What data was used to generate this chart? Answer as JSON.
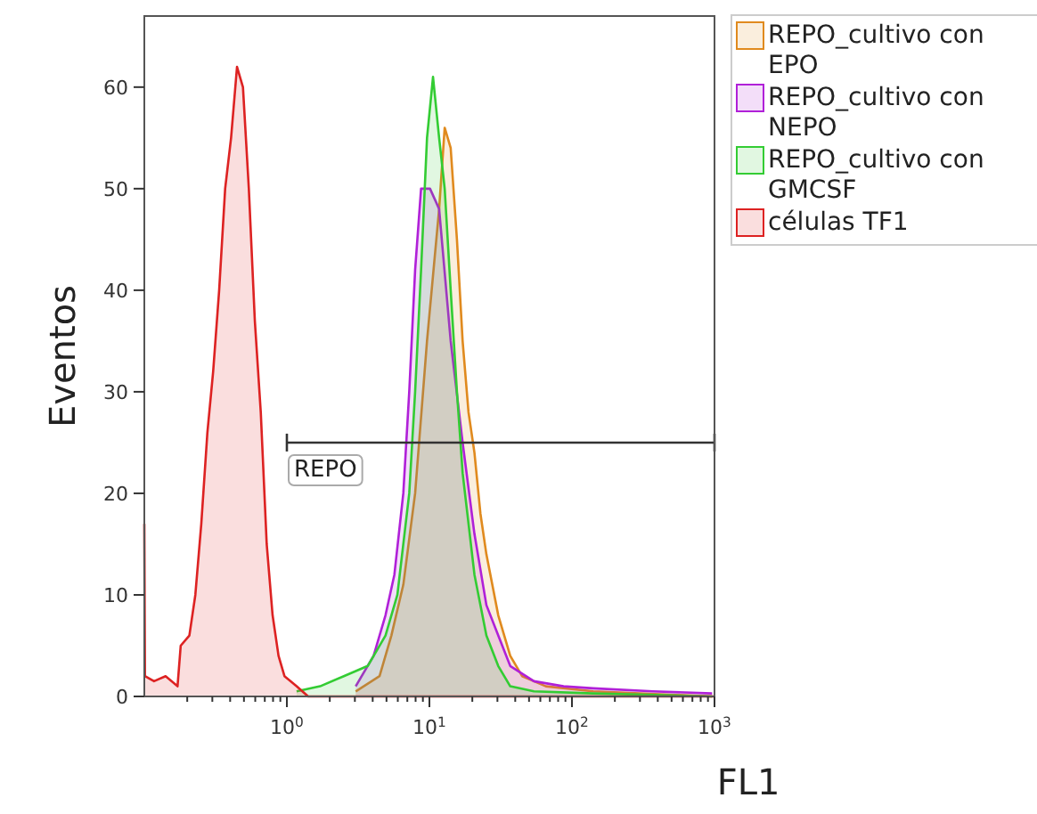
{
  "chart_data": {
    "type": "area",
    "xlabel": "FL1",
    "ylabel": "Eventos",
    "log": "x",
    "legend": "top right",
    "xlim": [
      0.1,
      1000
    ],
    "ylim": [
      0,
      67
    ],
    "xticks": [
      {
        "value": 0.2,
        "label": null
      },
      {
        "value": 0.3,
        "label": null
      },
      {
        "value": 0.4,
        "label": null
      },
      {
        "value": 0.5,
        "label": null
      },
      {
        "value": 0.6,
        "label": null
      },
      {
        "value": 0.7,
        "label": null
      },
      {
        "value": 0.8,
        "label": null
      },
      {
        "value": 0.9,
        "label": null
      },
      {
        "value": 1,
        "label": "10$^{0}$"
      },
      {
        "value": 2,
        "label": null
      },
      {
        "value": 3,
        "label": null
      },
      {
        "value": 4,
        "label": null
      },
      {
        "value": 5,
        "label": null
      },
      {
        "value": 6,
        "label": null
      },
      {
        "value": 7,
        "label": null
      },
      {
        "value": 8,
        "label": null
      },
      {
        "value": 9,
        "label": null
      },
      {
        "value": 10,
        "label": "10$^{1}$"
      },
      {
        "value": 20,
        "label": null
      },
      {
        "value": 30,
        "label": null
      },
      {
        "value": 40,
        "label": null
      },
      {
        "value": 50,
        "label": null
      },
      {
        "value": 60,
        "label": null
      },
      {
        "value": 70,
        "label": null
      },
      {
        "value": 80,
        "label": null
      },
      {
        "value": 90,
        "label": null
      },
      {
        "value": 100,
        "label": "10$^{2}$"
      },
      {
        "value": 200,
        "label": null
      },
      {
        "value": 300,
        "label": null
      },
      {
        "value": 400,
        "label": null
      },
      {
        "value": 500,
        "label": null
      },
      {
        "value": 600,
        "label": null
      },
      {
        "value": 700,
        "label": null
      },
      {
        "value": 800,
        "label": null
      },
      {
        "value": 900,
        "label": null
      },
      {
        "value": 1000,
        "label": "10$^{3}$"
      }
    ],
    "yticks": [
      0,
      10,
      20,
      30,
      40,
      50,
      60
    ],
    "annotations": [
      {
        "text": "REPO",
        "x": 1,
        "y": 25
      }
    ],
    "series": [
      {
        "name": "REPO_cultivo con EPO",
        "color": "#e08a1e",
        "x": [
          3.04,
          4.47,
          5.41,
          6.56,
          7.94,
          9.62,
          11.7,
          12.8,
          14.1,
          15.6,
          17.1,
          18.8,
          20.7,
          22.8,
          25.1,
          30.4,
          36.9,
          44.7,
          65.6,
          141,
          962
        ],
        "values": [
          0.5,
          2,
          6,
          11,
          20,
          35,
          48,
          56,
          54,
          45,
          35,
          28,
          24,
          18,
          14,
          8,
          4,
          2,
          1,
          0.5,
          0
        ]
      },
      {
        "name": "REPO_cultivo con NEPO",
        "color": "#b020d8",
        "x": [
          3.04,
          4.06,
          4.92,
          5.68,
          6.56,
          7.22,
          7.94,
          8.74,
          10.1,
          11.7,
          14.1,
          17.1,
          20.7,
          25.1,
          30.4,
          36.9,
          54.1,
          87.4,
          141,
          369,
          962
        ],
        "values": [
          1,
          4,
          8,
          12,
          20,
          30,
          42,
          50,
          50,
          48,
          35,
          25,
          16,
          9,
          6,
          3,
          1.5,
          1,
          0.8,
          0.5,
          0.3
        ]
      },
      {
        "name": "REPO_cultivo con GMCSF",
        "color": "#33cc33",
        "x": [
          1.17,
          1.71,
          2.51,
          3.69,
          4.92,
          5.96,
          7.22,
          7.94,
          8.74,
          9.62,
          10.6,
          11.7,
          12.8,
          14.1,
          15.6,
          17.1,
          20.7,
          25.1,
          30.4,
          36.9,
          54.1,
          141,
          962
        ],
        "values": [
          0.5,
          1,
          2,
          3,
          6,
          10,
          20,
          30,
          42,
          55,
          61,
          55,
          50,
          40,
          30,
          22,
          12,
          6,
          3,
          1,
          0.5,
          0.3,
          0
        ]
      },
      {
        "type": "line",
        "color": "#333333",
        "x": [
          1,
          1000
        ],
        "values": [
          25,
          25
        ]
      },
      {
        "name": "células TF1",
        "color": "#dd2222",
        "x": [
          0.1,
          0.101,
          0.117,
          0.141,
          0.171,
          0.18,
          0.207,
          0.228,
          0.251,
          0.277,
          0.304,
          0.335,
          0.369,
          0.406,
          0.447,
          0.492,
          0.541,
          0.596,
          0.656,
          0.722,
          0.794,
          0.874,
          0.962,
          1.17,
          1.41,
          1000
        ],
        "values": [
          17,
          2,
          1.5,
          2,
          1,
          5,
          6,
          10,
          17,
          26,
          32,
          40,
          50,
          55,
          62,
          60,
          50,
          37,
          28,
          15,
          8,
          4,
          2,
          1,
          0,
          0
        ]
      }
    ]
  }
}
